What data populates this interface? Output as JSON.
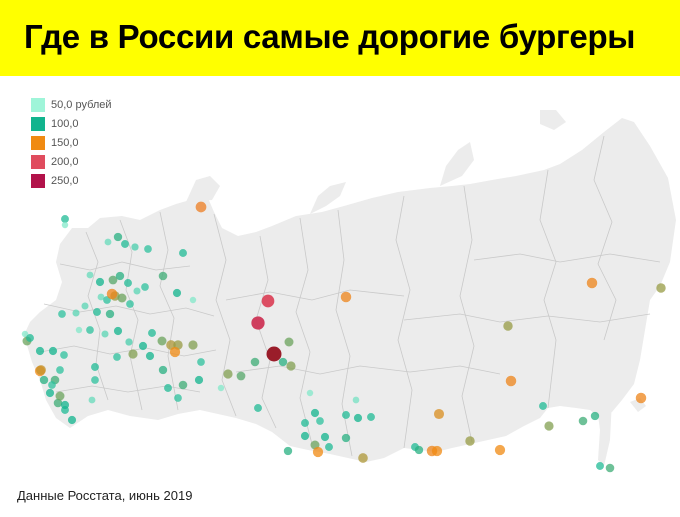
{
  "title": "Где в России самые дорогие бургеры",
  "source": "Данные Росстата, июнь 2019",
  "colors": {
    "banner": "#ffff00",
    "land": "#ececec",
    "border": "#c9c9c9"
  },
  "legend": [
    {
      "label": "50,0 рублей",
      "color": "#9ff5d9"
    },
    {
      "label": "100,0",
      "color": "#12b48e"
    },
    {
      "label": "150,0",
      "color": "#f08a12"
    },
    {
      "label": "200,0",
      "color": "#e04c5e"
    },
    {
      "label": "250,0",
      "color": "#b2124a"
    }
  ],
  "chart_data": {
    "type": "scatter",
    "value_unit": "рублей",
    "scale_min": 50,
    "scale_max": 250
  }
}
